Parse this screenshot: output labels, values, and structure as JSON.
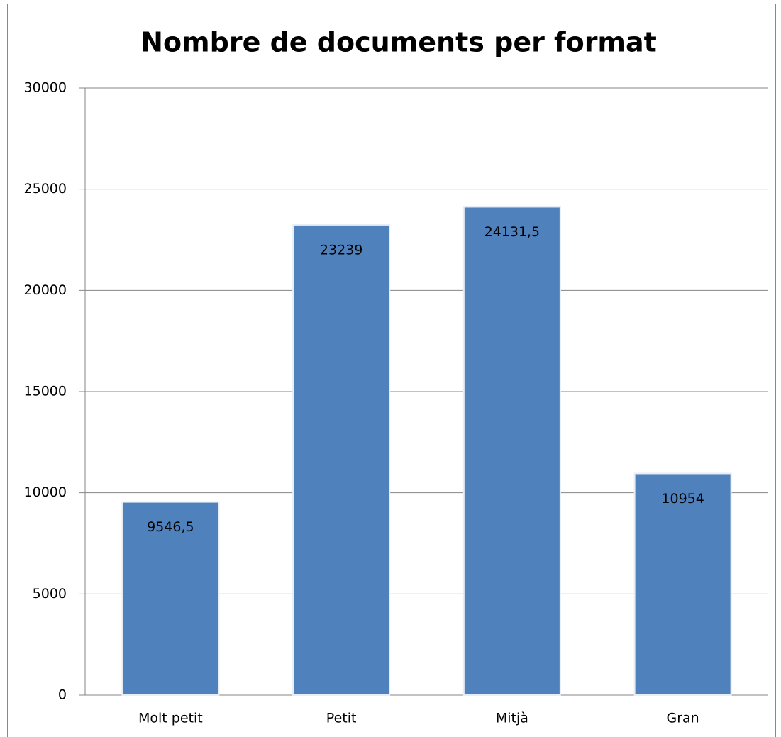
{
  "chart_data": {
    "type": "bar",
    "title": "Nombre de documents per format",
    "categories": [
      "Molt petit",
      "Petit",
      "Mitjà",
      "Gran"
    ],
    "values": [
      9546.5,
      23239,
      24131.5,
      10954
    ],
    "value_labels": [
      "9546,5",
      "23239",
      "24131,5",
      "10954"
    ],
    "color": "#4f81bd",
    "ylim": [
      0,
      30000
    ],
    "yticks": [
      0,
      5000,
      10000,
      15000,
      20000,
      25000,
      30000
    ],
    "grid": true
  }
}
